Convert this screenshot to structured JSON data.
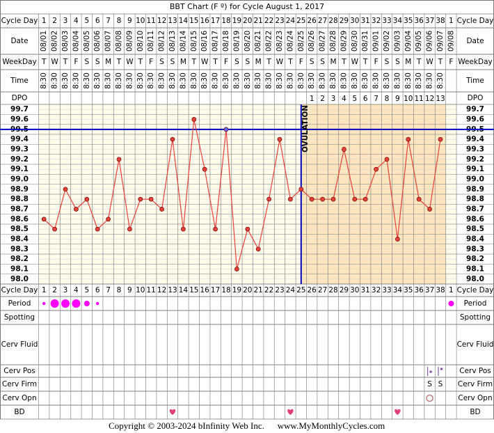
{
  "chart_data": {
    "type": "line",
    "title": "BBT Chart (F º) for Cycle August 1, 2017",
    "row_labels": {
      "cycle_day": "Cycle Day",
      "date": "Date",
      "weekday": "WeekDay",
      "time": "Time",
      "dpo": "DPO",
      "period": "Period",
      "spotting": "Spotting",
      "cerv_fluid": "Cerv Fluid",
      "cerv_pos": "Cerv Pos",
      "cerv_firm": "Cerv Firm",
      "cerv_opn": "Cerv Opn",
      "bd": "BD"
    },
    "categories": [
      1,
      2,
      3,
      4,
      5,
      6,
      7,
      8,
      9,
      10,
      11,
      12,
      13,
      14,
      15,
      16,
      17,
      18,
      19,
      20,
      21,
      22,
      23,
      24,
      25,
      26,
      27,
      28,
      29,
      30,
      31,
      32,
      33,
      34,
      35,
      36,
      37,
      38,
      1
    ],
    "dates": [
      "08/01",
      "08/02",
      "08/03",
      "08/04",
      "08/05",
      "08/06",
      "08/07",
      "08/08",
      "08/09",
      "08/10",
      "08/11",
      "08/12",
      "08/13",
      "08/14",
      "08/15",
      "08/16",
      "08/17",
      "08/18",
      "08/19",
      "08/20",
      "08/21",
      "08/22",
      "08/23",
      "08/24",
      "08/25",
      "08/26",
      "08/27",
      "08/28",
      "08/29",
      "08/30",
      "08/31",
      "09/01",
      "09/02",
      "09/03",
      "09/04",
      "09/05",
      "09/06",
      "09/07",
      "09/08"
    ],
    "weekdays": [
      "T",
      "W",
      "T",
      "F",
      "S",
      "S",
      "M",
      "T",
      "W",
      "T",
      "F",
      "S",
      "S",
      "M",
      "T",
      "W",
      "T",
      "F",
      "S",
      "S",
      "M",
      "T",
      "W",
      "T",
      "F",
      "S",
      "S",
      "M",
      "T",
      "W",
      "T",
      "F",
      "S",
      "S",
      "M",
      "T",
      "W",
      "T",
      "F"
    ],
    "times": [
      "8:30",
      "8:30",
      "8:30",
      "8:30",
      "8:30",
      "8:30",
      "8:30",
      "8:30",
      "8:30",
      "8:30",
      "8:30",
      "8:30",
      "8:30",
      "8:30",
      "8:30",
      "8:30",
      "8:30",
      "8:30",
      "8:30",
      "8:30",
      "8:30",
      "8:30",
      "8:30",
      "8:30",
      "8:30",
      "8:30",
      "8:30",
      "8:30",
      "8:30",
      "8:30",
      "8:30",
      "8:30",
      "8:30",
      "8:30",
      "8:30",
      "8:30",
      "8:30",
      "8:30",
      null
    ],
    "dpo": [
      null,
      null,
      null,
      null,
      null,
      null,
      null,
      null,
      null,
      null,
      null,
      null,
      null,
      null,
      null,
      null,
      null,
      null,
      null,
      null,
      null,
      null,
      null,
      null,
      null,
      1,
      2,
      3,
      4,
      5,
      6,
      7,
      8,
      9,
      10,
      11,
      12,
      13,
      null
    ],
    "series": [
      {
        "name": "BBT",
        "color": "#e8413a",
        "values": [
          98.6,
          98.5,
          98.9,
          98.7,
          98.8,
          98.5,
          98.6,
          99.2,
          98.5,
          98.8,
          98.8,
          98.7,
          99.4,
          98.5,
          99.6,
          99.1,
          98.5,
          99.5,
          98.1,
          98.5,
          98.3,
          98.8,
          99.4,
          98.8,
          98.9,
          98.8,
          98.8,
          98.8,
          99.3,
          98.8,
          98.8,
          99.1,
          99.2,
          98.4,
          99.4,
          98.8,
          98.7,
          99.4,
          null
        ]
      }
    ],
    "ylim": [
      97.95,
      99.75
    ],
    "yticks": [
      {
        "value": 98,
        "label": "98.0"
      },
      98.1,
      98.2,
      98.3,
      98.4,
      98.5,
      98.6,
      98.7,
      98.8,
      98.9,
      {
        "value": 99,
        "label": "99.0"
      },
      99.1,
      99.2,
      99.3,
      99.4,
      99.5,
      99.6,
      99.7
    ],
    "coverline": 99.5,
    "ovulation": {
      "label": "OVULATION",
      "day": 25
    },
    "period": [
      1,
      3,
      3,
      3,
      2,
      1,
      null,
      null,
      null,
      null,
      null,
      null,
      null,
      null,
      null,
      null,
      null,
      null,
      null,
      null,
      null,
      null,
      null,
      null,
      null,
      null,
      null,
      null,
      null,
      null,
      null,
      null,
      null,
      null,
      null,
      null,
      null,
      null,
      2
    ],
    "cerv_pos": [
      {
        "day": 37,
        "level": 1
      },
      {
        "day": 38,
        "level": 2
      }
    ],
    "cerv_firm": [
      {
        "day": 37,
        "label": "S"
      },
      {
        "day": 38,
        "label": "S"
      }
    ],
    "cerv_opn": [
      {
        "day": 37
      }
    ],
    "bd": [
      13,
      24,
      34
    ],
    "copyright": "Copyright © 2003-2024 bInfinity Web Inc.",
    "website": "www.MyMonthlyCycles.com"
  }
}
